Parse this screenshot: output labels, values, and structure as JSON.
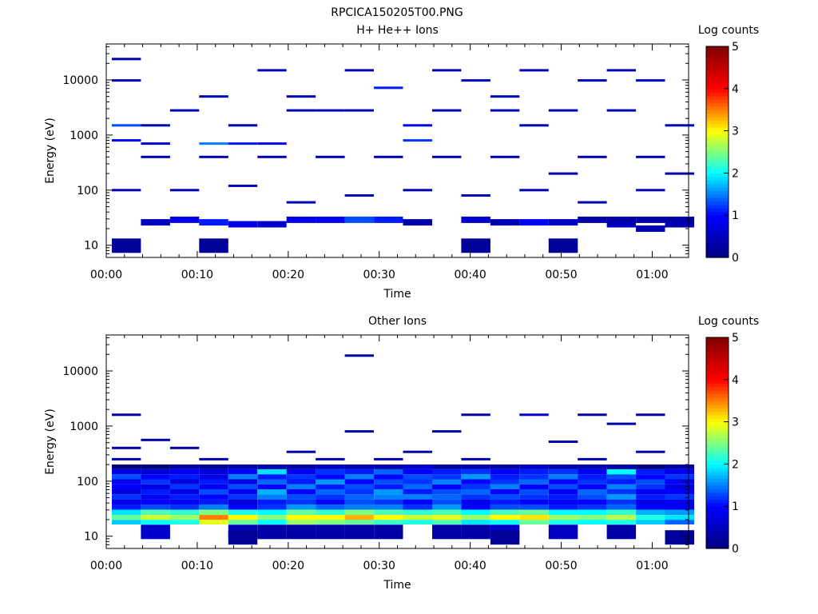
{
  "page_title": "RPCICA150205T00.PNG",
  "chart_data": [
    {
      "type": "heatmap",
      "title": "H+ He++ Ions",
      "xlabel": "Time",
      "ylabel": "Energy (eV)",
      "colorbar_label": "Log counts",
      "y_scale": "log",
      "x_ticks": [
        "00:00",
        "00:10",
        "00:20",
        "00:30",
        "00:40",
        "00:50",
        "01:00"
      ],
      "y_ticks": [
        "10",
        "100",
        "1000",
        "10000"
      ],
      "colorbar_ticks": [
        "0",
        "1",
        "2",
        "3",
        "4",
        "5"
      ],
      "xlim_minutes": [
        0,
        64
      ],
      "ylim_ev": [
        6,
        45000
      ],
      "clim": [
        0,
        5
      ],
      "colormap": [
        "#000080",
        "#0000ff",
        "#00ffff",
        "#ffff00",
        "#ff0000",
        "#800000"
      ],
      "time_bins_minutes": [
        0,
        3.2,
        6.4,
        9.6,
        12.8,
        16,
        19.2,
        22.4,
        25.6,
        28.8,
        32,
        35.2,
        38.4,
        41.6,
        44.8,
        48,
        51.2,
        54.4,
        57.6,
        60.8,
        64
      ],
      "cells": [
        {
          "t": 0,
          "e": 9.8,
          "v": 0.2
        },
        {
          "t": 3,
          "e": 9.8,
          "v": 0.2
        },
        {
          "t": 12,
          "e": 9.8,
          "v": 0.2
        },
        {
          "t": 15,
          "e": 9.8,
          "v": 0.2
        },
        {
          "t": 18,
          "e": 20,
          "v": 0.4
        },
        {
          "t": 17,
          "e": 24,
          "v": 0.5
        },
        {
          "t": 19,
          "e": 24,
          "v": 0.4
        },
        {
          "t": 1,
          "e": 26,
          "v": 0.5
        },
        {
          "t": 2,
          "e": 29,
          "v": 0.8
        },
        {
          "t": 3,
          "e": 26,
          "v": 1.1
        },
        {
          "t": 4,
          "e": 24,
          "v": 0.8
        },
        {
          "t": 5,
          "e": 24,
          "v": 0.6
        },
        {
          "t": 6,
          "e": 29,
          "v": 0.8
        },
        {
          "t": 7,
          "e": 29,
          "v": 0.9
        },
        {
          "t": 8,
          "e": 29,
          "v": 1.3
        },
        {
          "t": 9,
          "e": 29,
          "v": 1.1
        },
        {
          "t": 10,
          "e": 26,
          "v": 0.3
        },
        {
          "t": 12,
          "e": 29,
          "v": 0.6
        },
        {
          "t": 13,
          "e": 26,
          "v": 0.4
        },
        {
          "t": 14,
          "e": 26,
          "v": 0.9
        },
        {
          "t": 15,
          "e": 26,
          "v": 0.5
        },
        {
          "t": 16,
          "e": 29,
          "v": 0.3
        },
        {
          "t": 17,
          "e": 29,
          "v": 0.3
        },
        {
          "t": 18,
          "e": 29,
          "v": 0.3
        },
        {
          "t": 19,
          "e": 29,
          "v": 0.3
        },
        {
          "t": 0,
          "e": 24000,
          "v": 0.3
        },
        {
          "t": 0,
          "e": 9800,
          "v": 0.4
        },
        {
          "t": 0,
          "e": 1500,
          "v": 1.3
        },
        {
          "t": 0,
          "e": 800,
          "v": 1.0
        },
        {
          "t": 1,
          "e": 1500,
          "v": 0.4
        },
        {
          "t": 1,
          "e": 700,
          "v": 0.6
        },
        {
          "t": 3,
          "e": 700,
          "v": 1.5
        },
        {
          "t": 4,
          "e": 700,
          "v": 1.1
        },
        {
          "t": 4,
          "e": 1500,
          "v": 0.4
        },
        {
          "t": 5,
          "e": 700,
          "v": 0.9
        },
        {
          "t": 7,
          "e": 2800,
          "v": 0.5
        },
        {
          "t": 9,
          "e": 7200,
          "v": 1.1
        },
        {
          "t": 10,
          "e": 1500,
          "v": 0.9
        },
        {
          "t": 10,
          "e": 800,
          "v": 1.2
        },
        {
          "t": 12,
          "e": 9800,
          "v": 0.5
        },
        {
          "t": 14,
          "e": 1500,
          "v": 0.4
        },
        {
          "t": 16,
          "e": 9800,
          "v": 0.5
        },
        {
          "t": 18,
          "e": 9800,
          "v": 0.6
        },
        {
          "t": 19,
          "e": 1500,
          "v": 0.5
        },
        {
          "t": 2,
          "e": 2800,
          "v": 0.4
        },
        {
          "t": 6,
          "e": 2800,
          "v": 0.4
        },
        {
          "t": 8,
          "e": 2800,
          "v": 0.4
        },
        {
          "t": 11,
          "e": 2800,
          "v": 0.4
        },
        {
          "t": 13,
          "e": 2800,
          "v": 0.4
        },
        {
          "t": 15,
          "e": 2800,
          "v": 0.4
        },
        {
          "t": 17,
          "e": 2800,
          "v": 0.4
        },
        {
          "t": 1,
          "e": 400,
          "v": 0.4
        },
        {
          "t": 3,
          "e": 400,
          "v": 0.4
        },
        {
          "t": 5,
          "e": 400,
          "v": 0.4
        },
        {
          "t": 7,
          "e": 400,
          "v": 0.4
        },
        {
          "t": 9,
          "e": 400,
          "v": 0.4
        },
        {
          "t": 11,
          "e": 400,
          "v": 0.4
        },
        {
          "t": 13,
          "e": 400,
          "v": 0.4
        },
        {
          "t": 16,
          "e": 400,
          "v": 0.4
        },
        {
          "t": 18,
          "e": 400,
          "v": 0.4
        },
        {
          "t": 0,
          "e": 100,
          "v": 0.4
        },
        {
          "t": 2,
          "e": 100,
          "v": 0.4
        },
        {
          "t": 4,
          "e": 120,
          "v": 0.4
        },
        {
          "t": 6,
          "e": 60,
          "v": 0.4
        },
        {
          "t": 8,
          "e": 80,
          "v": 0.4
        },
        {
          "t": 10,
          "e": 100,
          "v": 0.4
        },
        {
          "t": 12,
          "e": 80,
          "v": 0.4
        },
        {
          "t": 14,
          "e": 100,
          "v": 0.4
        },
        {
          "t": 16,
          "e": 60,
          "v": 0.4
        },
        {
          "t": 18,
          "e": 100,
          "v": 0.4
        },
        {
          "t": 19,
          "e": 200,
          "v": 0.4
        },
        {
          "t": 15,
          "e": 200,
          "v": 0.4
        },
        {
          "t": 5,
          "e": 15000,
          "v": 0.4
        },
        {
          "t": 8,
          "e": 15000,
          "v": 0.4
        },
        {
          "t": 11,
          "e": 15000,
          "v": 0.4
        },
        {
          "t": 14,
          "e": 15000,
          "v": 0.4
        },
        {
          "t": 17,
          "e": 15000,
          "v": 0.4
        },
        {
          "t": 3,
          "e": 5000,
          "v": 0.4
        },
        {
          "t": 6,
          "e": 5000,
          "v": 0.4
        },
        {
          "t": 13,
          "e": 5000,
          "v": 0.4
        }
      ]
    },
    {
      "type": "heatmap",
      "title": "Other Ions",
      "xlabel": "Time",
      "ylabel": "Energy (eV)",
      "colorbar_label": "Log counts",
      "y_scale": "log",
      "x_ticks": [
        "00:00",
        "00:10",
        "00:20",
        "00:30",
        "00:40",
        "00:50",
        "01:00"
      ],
      "y_ticks": [
        "10",
        "100",
        "1000",
        "10000"
      ],
      "colorbar_ticks": [
        "0",
        "1",
        "2",
        "3",
        "4",
        "5"
      ],
      "xlim_minutes": [
        0,
        64
      ],
      "ylim_ev": [
        6,
        45000
      ],
      "clim": [
        0,
        5
      ],
      "colormap": [
        "#000080",
        "#0000ff",
        "#00ffff",
        "#ffff00",
        "#ff0000",
        "#800000"
      ],
      "time_bins_minutes": [
        0,
        3.2,
        6.4,
        9.6,
        12.8,
        16,
        19.2,
        22.4,
        25.6,
        28.8,
        32,
        35.2,
        38.4,
        41.6,
        44.8,
        48,
        51.2,
        54.4,
        57.6,
        60.8,
        64
      ],
      "energy_rows_ev": [
        18,
        22,
        27,
        34,
        42,
        52,
        64,
        79,
        97,
        120,
        148,
        182
      ],
      "spectrum_rows": [
        [
          1.8,
          2.0,
          2.1,
          2.9,
          2.4,
          2.0,
          2.6,
          2.5,
          2.4,
          2.2,
          2.1,
          2.3,
          1.9,
          2.0,
          2.4,
          2.1,
          2.0,
          2.1,
          1.8,
          1.4
        ],
        [
          2.4,
          2.8,
          2.6,
          3.5,
          3.0,
          2.5,
          3.0,
          3.0,
          3.3,
          3.0,
          2.8,
          2.9,
          2.6,
          3.0,
          3.1,
          2.6,
          2.5,
          2.7,
          2.1,
          1.9
        ],
        [
          1.9,
          2.3,
          2.2,
          2.5,
          2.1,
          2.0,
          2.4,
          2.2,
          2.5,
          2.3,
          2.2,
          2.3,
          2.0,
          2.3,
          2.4,
          2.0,
          2.0,
          2.2,
          1.7,
          1.6
        ],
        [
          1.1,
          1.3,
          1.2,
          1.5,
          1.0,
          1.2,
          1.6,
          1.4,
          1.5,
          1.5,
          1.2,
          1.6,
          1.0,
          1.3,
          1.3,
          1.1,
          1.2,
          1.4,
          1.0,
          0.9
        ],
        [
          0.8,
          1.0,
          0.9,
          1.1,
          0.7,
          1.1,
          1.2,
          1.0,
          1.3,
          1.2,
          1.0,
          1.3,
          0.8,
          1.1,
          1.0,
          0.9,
          1.0,
          1.2,
          0.8,
          0.9
        ],
        [
          1.2,
          0.9,
          1.1,
          1.0,
          1.2,
          1.5,
          1.3,
          1.2,
          1.4,
          1.5,
          1.5,
          1.4,
          1.2,
          1.3,
          1.2,
          1.1,
          1.3,
          1.6,
          1.1,
          1.2
        ],
        [
          0.7,
          1.1,
          0.8,
          1.3,
          0.9,
          1.7,
          1.0,
          1.4,
          1.2,
          1.6,
          1.1,
          1.3,
          1.4,
          1.0,
          1.3,
          0.9,
          1.4,
          1.2,
          0.9,
          1.0
        ],
        [
          1.0,
          0.8,
          1.2,
          0.9,
          1.3,
          1.0,
          1.5,
          1.1,
          1.3,
          1.1,
          1.4,
          1.0,
          1.2,
          1.5,
          1.0,
          1.3,
          1.0,
          1.5,
          1.2,
          0.8
        ],
        [
          0.9,
          1.2,
          0.7,
          1.1,
          0.8,
          1.4,
          1.1,
          1.6,
          1.0,
          1.3,
          1.2,
          1.5,
          1.0,
          1.2,
          1.4,
          1.0,
          1.2,
          1.1,
          1.3,
          1.0
        ],
        [
          1.3,
          1.0,
          1.1,
          0.8,
          1.5,
          1.1,
          1.2,
          1.0,
          1.5,
          1.0,
          1.3,
          1.2,
          1.6,
          1.1,
          1.2,
          1.5,
          1.1,
          1.3,
          1.0,
          1.2
        ],
        [
          0.8,
          0.7,
          0.9,
          0.7,
          1.0,
          1.9,
          0.9,
          1.2,
          1.1,
          1.4,
          1.0,
          1.1,
          1.2,
          1.0,
          1.1,
          1.2,
          0.9,
          2.0,
          1.1,
          0.9
        ],
        [
          0.0,
          0.0,
          0.3,
          0.2,
          0.4,
          0.4,
          0.3,
          0.5,
          0.4,
          0.4,
          0.6,
          0.3,
          0.4,
          0.3,
          0.5,
          0.4,
          0.4,
          0.3,
          0.0,
          0.3
        ]
      ],
      "cells": [
        {
          "t": 1,
          "e": 12,
          "v": 0.6
        },
        {
          "t": 4,
          "e": 12,
          "v": 0.4
        },
        {
          "t": 5,
          "e": 12,
          "v": 0.3
        },
        {
          "t": 6,
          "e": 12,
          "v": 0.3
        },
        {
          "t": 7,
          "e": 12,
          "v": 0.3
        },
        {
          "t": 8,
          "e": 12,
          "v": 0.3
        },
        {
          "t": 9,
          "e": 12,
          "v": 0.3
        },
        {
          "t": 11,
          "e": 12,
          "v": 0.3
        },
        {
          "t": 12,
          "e": 12,
          "v": 0.3
        },
        {
          "t": 13,
          "e": 12,
          "v": 0.6
        },
        {
          "t": 15,
          "e": 12,
          "v": 0.5
        },
        {
          "t": 17,
          "e": 12,
          "v": 0.3
        },
        {
          "t": 4,
          "e": 9.5,
          "v": 0.2
        },
        {
          "t": 13,
          "e": 9.5,
          "v": 0.2
        },
        {
          "t": 19,
          "e": 9.5,
          "v": 0.2
        },
        {
          "t": 0,
          "e": 1600,
          "v": 0.3
        },
        {
          "t": 14,
          "e": 1600,
          "v": 0.6
        },
        {
          "t": 18,
          "e": 1600,
          "v": 0.3
        },
        {
          "t": 8,
          "e": 19000,
          "v": 0.3
        },
        {
          "t": 12,
          "e": 1600,
          "v": 0.3
        },
        {
          "t": 16,
          "e": 1600,
          "v": 0.3
        },
        {
          "t": 17,
          "e": 1100,
          "v": 0.3
        },
        {
          "t": 1,
          "e": 560,
          "v": 0.3
        },
        {
          "t": 0,
          "e": 400,
          "v": 0.3
        },
        {
          "t": 2,
          "e": 400,
          "v": 0.3
        },
        {
          "t": 8,
          "e": 800,
          "v": 0.3
        },
        {
          "t": 11,
          "e": 800,
          "v": 0.3
        },
        {
          "t": 15,
          "e": 520,
          "v": 0.3
        },
        {
          "t": 6,
          "e": 340,
          "v": 0.3
        },
        {
          "t": 10,
          "e": 340,
          "v": 0.3
        },
        {
          "t": 18,
          "e": 340,
          "v": 0.3
        },
        {
          "t": 0,
          "e": 250,
          "v": 0.4
        },
        {
          "t": 3,
          "e": 250,
          "v": 0.4
        },
        {
          "t": 7,
          "e": 250,
          "v": 0.4
        },
        {
          "t": 9,
          "e": 250,
          "v": 0.4
        },
        {
          "t": 12,
          "e": 250,
          "v": 0.4
        },
        {
          "t": 16,
          "e": 250,
          "v": 0.4
        }
      ]
    }
  ]
}
